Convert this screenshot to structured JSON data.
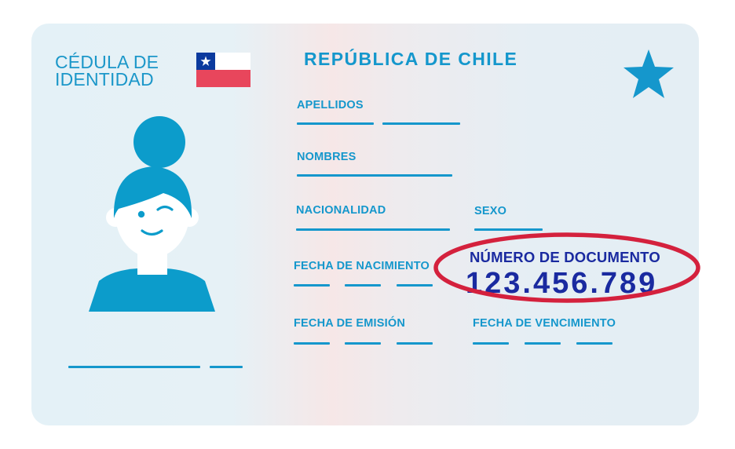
{
  "card": {
    "brand_line1": "CÉDULA DE",
    "brand_line2": "IDENTIDAD",
    "country": "REPÚBLICA DE CHILE",
    "fields": {
      "apellidos": "APELLIDOS",
      "nombres": "NOMBRES",
      "nacionalidad": "NACIONALIDAD",
      "sexo": "SEXO",
      "fecha_nacimiento": "FECHA DE NACIMIENTO",
      "fecha_emision": "FECHA DE EMISIÓN",
      "fecha_vencimiento": "FECHA DE VENCIMIENTO"
    },
    "document": {
      "label": "NÚMERO DE DOCUMENTO",
      "number": "123.456.789"
    }
  },
  "colors": {
    "accent": "#1597cc",
    "document_text": "#1a2aa0",
    "highlight_ellipse": "#d4213d",
    "flag_blue": "#0b3a9e",
    "flag_red": "#e8465c"
  },
  "icons": [
    "chile-flag-icon",
    "star-icon",
    "person-portrait-icon"
  ]
}
